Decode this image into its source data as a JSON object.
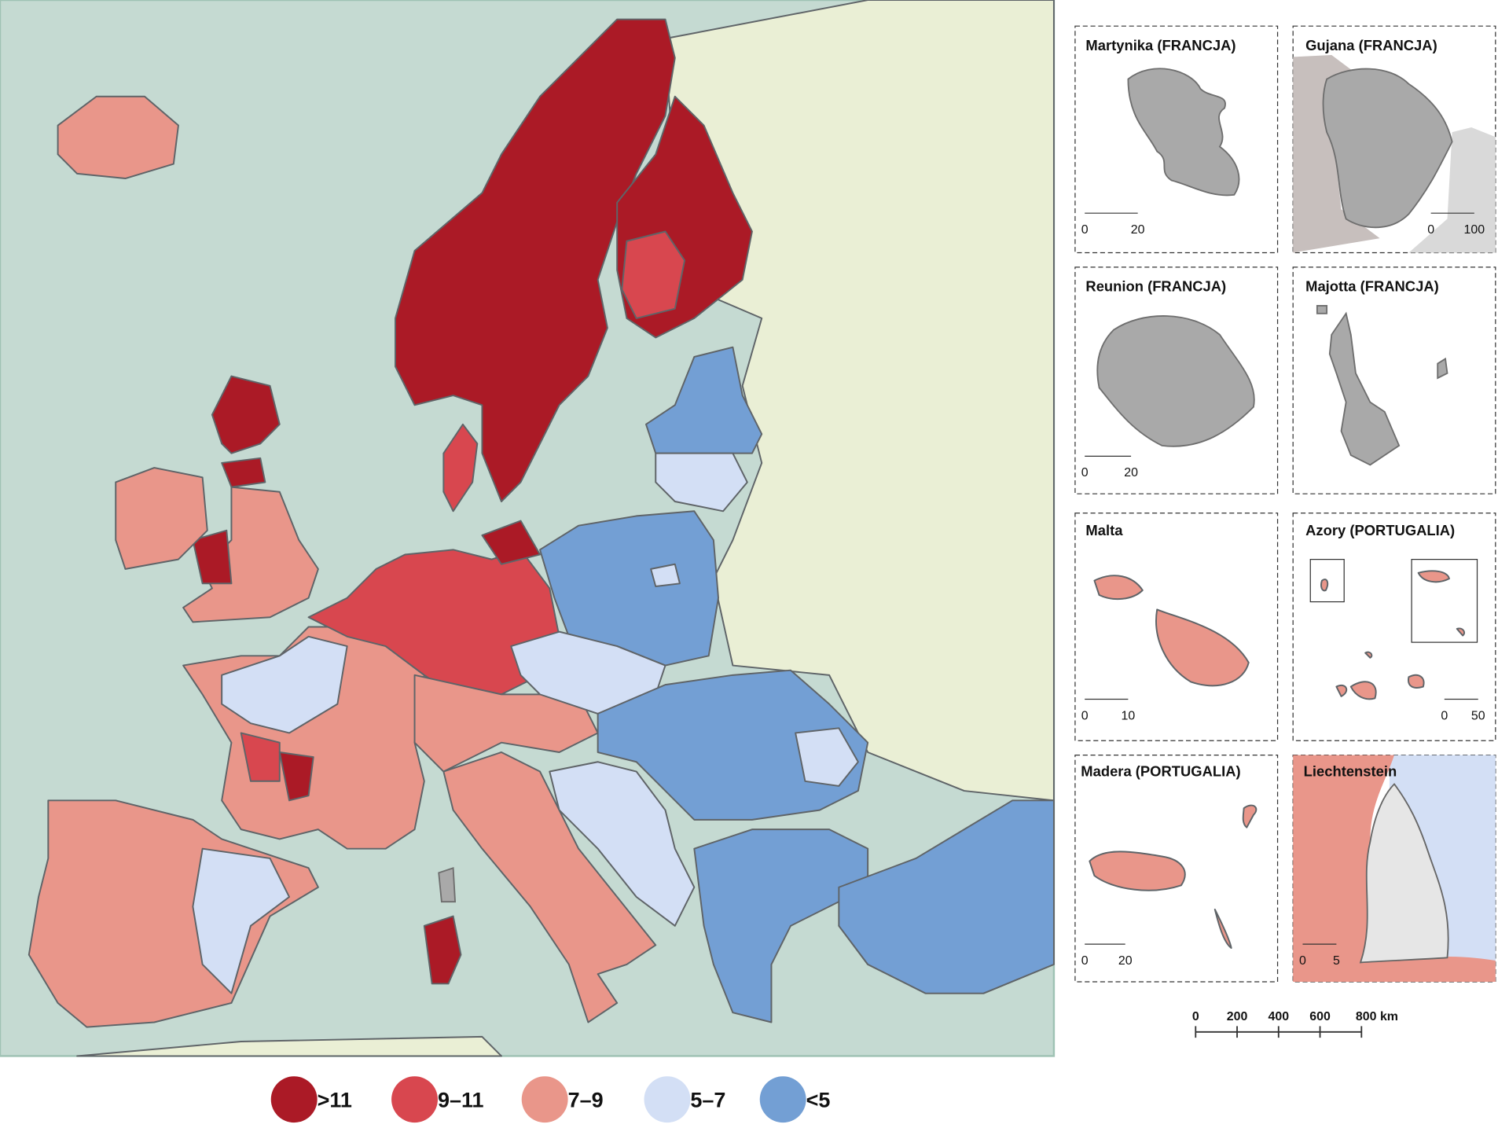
{
  "legend": [
    {
      "label": ">11",
      "color": "#ab1a26"
    },
    {
      "label": "9–11",
      "color": "#d8474f"
    },
    {
      "label": "7–9",
      "color": "#e9968a"
    },
    {
      "label": "5–7",
      "color": "#d3dff5"
    },
    {
      "label": "<5",
      "color": "#739fd4"
    }
  ],
  "insets": [
    {
      "title": "Martynika (FRANCJA)",
      "scale": [
        "0",
        "20"
      ]
    },
    {
      "title": "Gujana (FRANCJA)",
      "scale": [
        "0",
        "100"
      ]
    },
    {
      "title": "Reunion (FRANCJA)",
      "scale": [
        "0",
        "20"
      ]
    },
    {
      "title": "Majotta (FRANCJA)",
      "scale": []
    },
    {
      "title": "Malta",
      "scale": [
        "0",
        "10"
      ]
    },
    {
      "title": "Azory (PORTUGALIA)",
      "scale": [
        "0",
        "50"
      ]
    },
    {
      "title": "Madera (PORTUGALIA)",
      "scale": [
        "0",
        "20"
      ]
    },
    {
      "title": "Liechtenstein",
      "scale": [
        "0",
        "5"
      ]
    }
  ],
  "scale_bar": [
    "0",
    "200",
    "400",
    "600",
    "800 km"
  ]
}
